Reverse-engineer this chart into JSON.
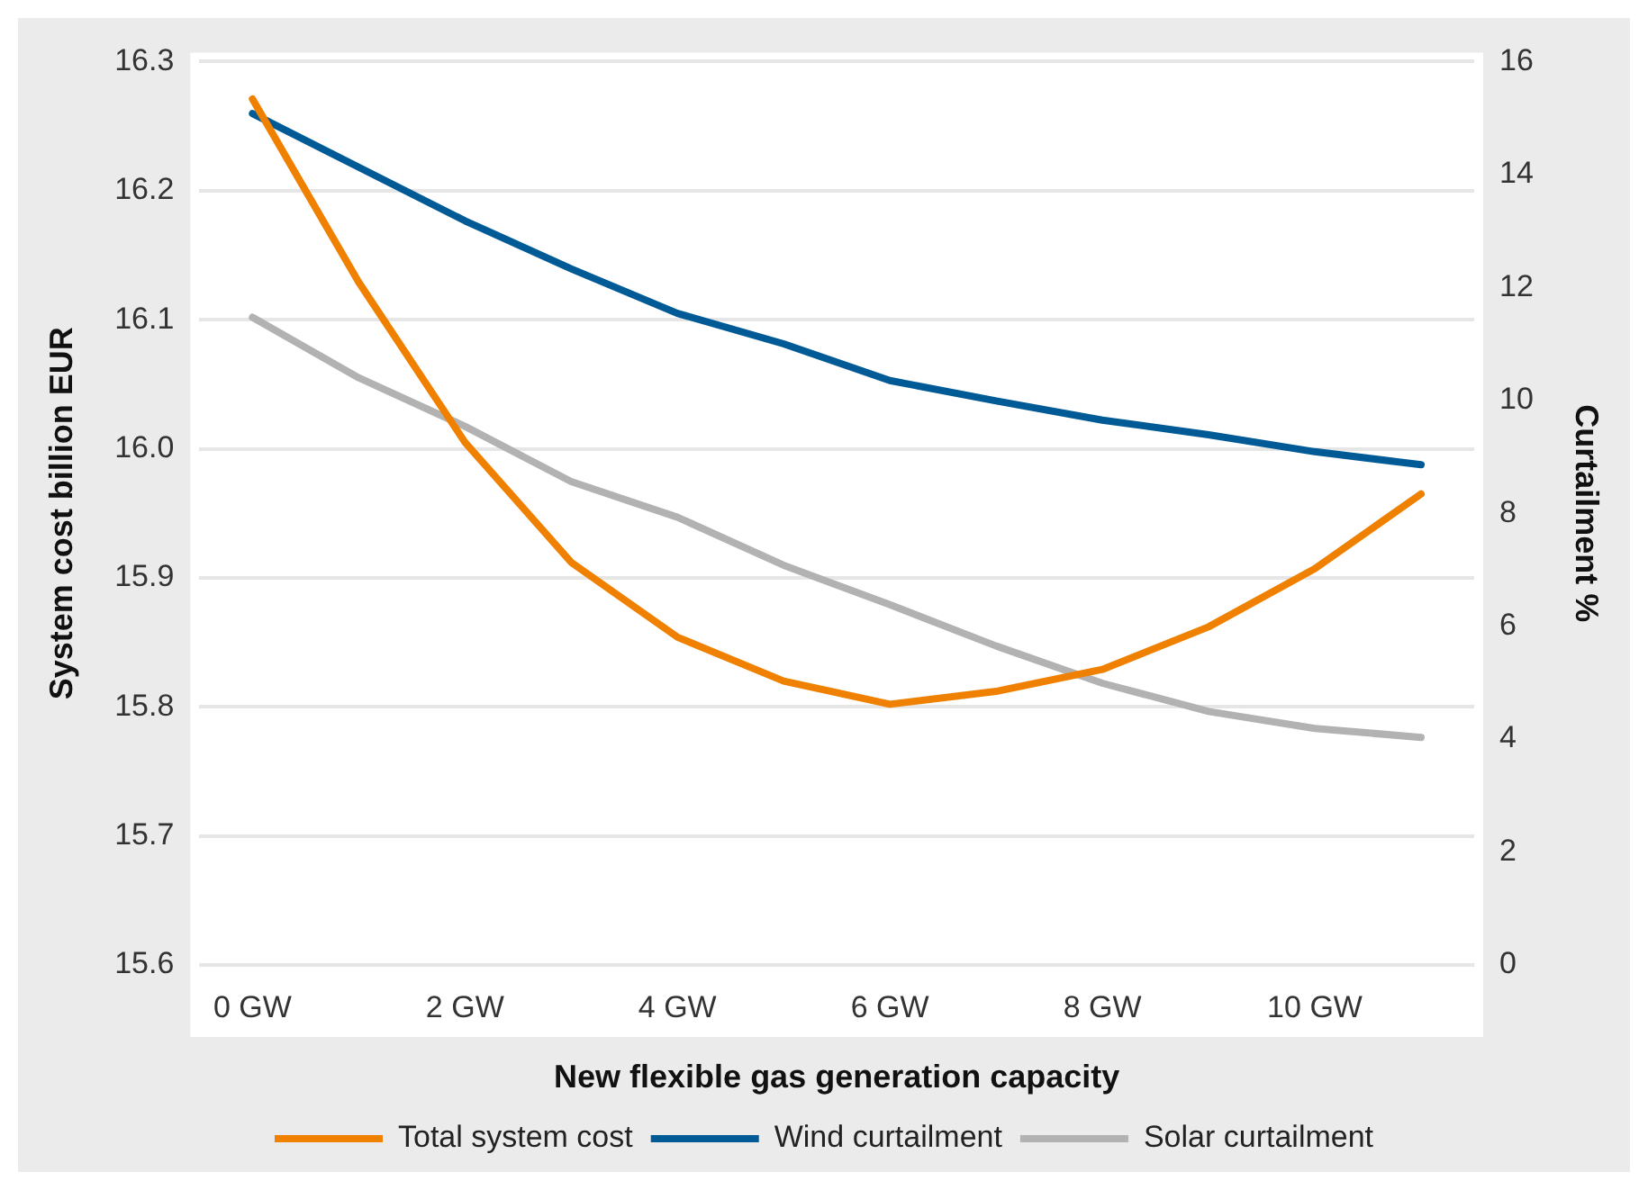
{
  "chart_data": {
    "type": "line",
    "xlabel": "New flexible gas generation capacity",
    "ylabel": "System cost billion EUR",
    "y2label": "Curtailment %",
    "categories": [
      "0 GW",
      null,
      "2 GW",
      null,
      "4 GW",
      null,
      "6 GW",
      null,
      "8 GW",
      null,
      "10 GW",
      null
    ],
    "series": [
      {
        "name": "Total system cost",
        "color": "#f08000",
        "values": [
          16.271,
          16.129,
          16.005,
          15.912,
          15.854,
          15.82,
          15.802,
          15.812,
          15.829,
          15.862,
          15.907,
          15.965
        ]
      },
      {
        "name": "Wind curtailment",
        "color": "#005a96",
        "axis": "y2",
        "values": [
          15.08,
          14.13,
          13.18,
          12.33,
          11.54,
          11.0,
          10.35,
          9.99,
          9.65,
          9.39,
          9.09,
          8.86
        ]
      },
      {
        "name": "Solar curtailment",
        "color": "#b2b2b2",
        "axis": "y2",
        "values": [
          11.47,
          10.4,
          9.54,
          8.56,
          7.93,
          7.08,
          6.38,
          5.65,
          4.99,
          4.49,
          4.19,
          4.03
        ]
      }
    ],
    "ylim": [
      15.6,
      16.3
    ],
    "yticks": [
      {
        "value": 15.6,
        "label": "15.6"
      },
      {
        "value": 15.7,
        "label": "15.7"
      },
      {
        "value": 15.8,
        "label": "15.8"
      },
      {
        "value": 15.9,
        "label": "15.9"
      },
      {
        "value": 16.0,
        "label": "16.0"
      },
      {
        "value": 16.1,
        "label": "16.1"
      },
      {
        "value": 16.2,
        "label": "16.2"
      },
      {
        "value": 16.3,
        "label": "16.3"
      }
    ],
    "y2lim": [
      0,
      16
    ],
    "y2ticks": [
      0,
      2,
      4,
      6,
      8,
      10,
      12,
      14,
      16
    ],
    "grid": "y",
    "legend": "bottom",
    "marker": "none",
    "line_style": "solid"
  }
}
